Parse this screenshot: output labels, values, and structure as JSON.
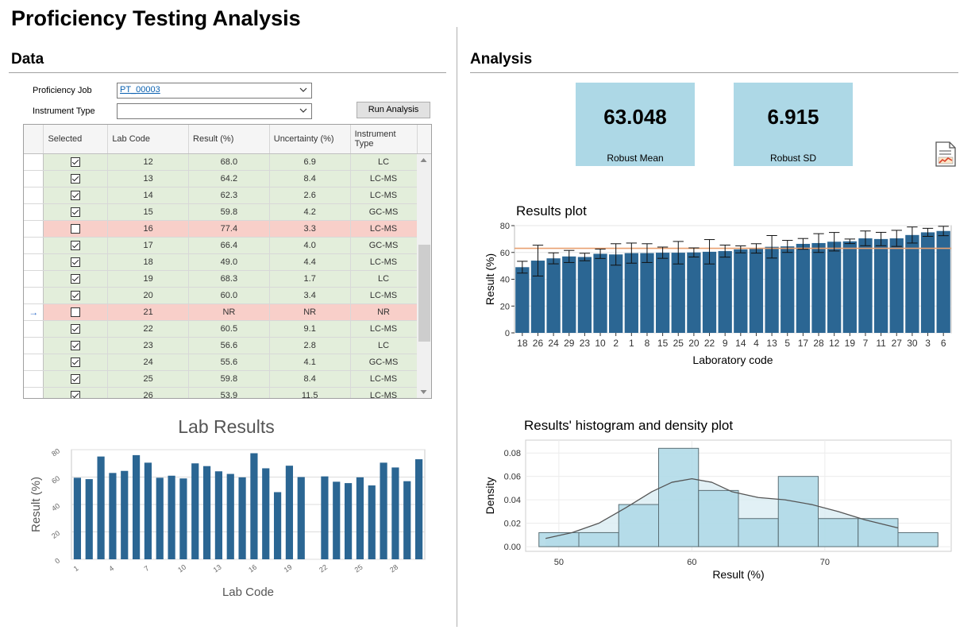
{
  "app": {
    "title": "Proficiency Testing Analysis"
  },
  "data_section": {
    "title": "Data",
    "proficiency_job_label": "Proficiency Job",
    "proficiency_job_value": "PT_00003",
    "instrument_type_label": "Instrument Type",
    "instrument_type_value": "",
    "run_button": "Run Analysis",
    "grid": {
      "columns": [
        "Selected",
        "Lab Code",
        "Result (%)",
        "Uncertainty (%)",
        "Instrument Type"
      ],
      "current_row_marker": "→",
      "rows": [
        {
          "selected": true,
          "lab": "12",
          "result": "68.0",
          "unc": "6.9",
          "inst": "LC",
          "ok": true
        },
        {
          "selected": true,
          "lab": "13",
          "result": "64.2",
          "unc": "8.4",
          "inst": "LC-MS",
          "ok": true
        },
        {
          "selected": true,
          "lab": "14",
          "result": "62.3",
          "unc": "2.6",
          "inst": "LC-MS",
          "ok": true
        },
        {
          "selected": true,
          "lab": "15",
          "result": "59.8",
          "unc": "4.2",
          "inst": "GC-MS",
          "ok": true
        },
        {
          "selected": false,
          "lab": "16",
          "result": "77.4",
          "unc": "3.3",
          "inst": "LC-MS",
          "ok": false
        },
        {
          "selected": true,
          "lab": "17",
          "result": "66.4",
          "unc": "4.0",
          "inst": "GC-MS",
          "ok": true
        },
        {
          "selected": true,
          "lab": "18",
          "result": "49.0",
          "unc": "4.4",
          "inst": "LC-MS",
          "ok": true
        },
        {
          "selected": true,
          "lab": "19",
          "result": "68.3",
          "unc": "1.7",
          "inst": "LC",
          "ok": true
        },
        {
          "selected": true,
          "lab": "20",
          "result": "60.0",
          "unc": "3.4",
          "inst": "LC-MS",
          "ok": true
        },
        {
          "selected": false,
          "lab": "21",
          "result": "NR",
          "unc": "NR",
          "inst": "NR",
          "ok": false,
          "current": true
        },
        {
          "selected": true,
          "lab": "22",
          "result": "60.5",
          "unc": "9.1",
          "inst": "LC-MS",
          "ok": true
        },
        {
          "selected": true,
          "lab": "23",
          "result": "56.6",
          "unc": "2.8",
          "inst": "LC",
          "ok": true
        },
        {
          "selected": true,
          "lab": "24",
          "result": "55.6",
          "unc": "4.1",
          "inst": "GC-MS",
          "ok": true
        },
        {
          "selected": true,
          "lab": "25",
          "result": "59.8",
          "unc": "8.4",
          "inst": "LC-MS",
          "ok": true
        },
        {
          "selected": true,
          "lab": "26",
          "result": "53.9",
          "unc": "11.5",
          "inst": "LC-MS",
          "ok": true
        }
      ]
    },
    "lab_results_chart": {
      "title": "Lab Results",
      "xlabel": "Lab Code",
      "ylabel": "Result (%)",
      "ylim": [
        0,
        80
      ],
      "yticks": [
        0,
        20,
        40,
        60,
        80
      ],
      "xticks": [
        1,
        4,
        7,
        10,
        13,
        16,
        19,
        22,
        25,
        28
      ],
      "bar_color": "#2b6693",
      "labs": [
        1,
        2,
        3,
        4,
        5,
        6,
        7,
        8,
        9,
        10,
        11,
        12,
        13,
        14,
        15,
        16,
        17,
        18,
        19,
        20,
        21,
        22,
        23,
        24,
        25,
        26,
        27,
        28,
        29,
        30
      ],
      "values": [
        59.5,
        58.5,
        75,
        63,
        64.5,
        76,
        70.5,
        59.5,
        61,
        59,
        70,
        68,
        64.2,
        62.3,
        59.8,
        77.4,
        66.4,
        49,
        68.3,
        60,
        null,
        60.5,
        56.6,
        55.6,
        59.8,
        53.9,
        70.5,
        67,
        57,
        73
      ]
    }
  },
  "analysis_section": {
    "title": "Analysis",
    "robust_mean": {
      "value": "63.048",
      "label": "Robust Mean"
    },
    "robust_sd": {
      "value": "6.915",
      "label": "Robust SD"
    },
    "report_icon": "report-icon"
  },
  "chart_data": [
    {
      "type": "bar",
      "title": "Results plot",
      "xlabel": "Laboratory code",
      "ylabel": "Result (%)",
      "ylim": [
        0,
        80
      ],
      "yticks": [
        0,
        20,
        40,
        60,
        80
      ],
      "bar_color": "#2b6693",
      "reference_line": 63.048,
      "reference_color": "#e8a070",
      "categories": [
        "18",
        "26",
        "24",
        "29",
        "23",
        "10",
        "2",
        "1",
        "8",
        "15",
        "25",
        "20",
        "22",
        "9",
        "14",
        "4",
        "13",
        "5",
        "17",
        "28",
        "12",
        "19",
        "7",
        "11",
        "27",
        "30",
        "3",
        "6"
      ],
      "values": [
        49,
        53.9,
        55.6,
        57,
        56.6,
        59,
        58.5,
        59.5,
        59.5,
        59.8,
        59.8,
        60,
        60.5,
        61,
        62.3,
        63,
        64.2,
        64.5,
        66.4,
        67,
        68,
        68.3,
        70.5,
        70,
        70.5,
        73,
        75,
        76
      ],
      "uncertainty": [
        4.4,
        11.5,
        4.1,
        4.5,
        2.8,
        3.5,
        8,
        7.5,
        7,
        4.2,
        8.4,
        3.4,
        9.1,
        4.5,
        2.6,
        3.5,
        8.4,
        4.5,
        4,
        7,
        6.9,
        1.7,
        5.5,
        5,
        6,
        6,
        3,
        3.5
      ],
      "grid": true
    },
    {
      "type": "histogram",
      "title": "Results' histogram and density plot",
      "xlabel": "Result (%)",
      "ylabel": "Density",
      "xlim": [
        47.5,
        79.5
      ],
      "ylim": [
        -0.004,
        0.091
      ],
      "xticks": [
        50,
        60,
        70
      ],
      "yticks": [
        0,
        0.02,
        0.04,
        0.06,
        0.08
      ],
      "ytick_labels": [
        "0.00",
        "0.02",
        "0.04",
        "0.06",
        "0.08"
      ],
      "bin_color": "#add8e6",
      "bins": [
        {
          "x0": 48.5,
          "x1": 51.5,
          "density": 0.012
        },
        {
          "x0": 51.5,
          "x1": 54.5,
          "density": 0.012
        },
        {
          "x0": 54.5,
          "x1": 57.5,
          "density": 0.036
        },
        {
          "x0": 57.5,
          "x1": 60.5,
          "density": 0.084
        },
        {
          "x0": 60.5,
          "x1": 63.5,
          "density": 0.048
        },
        {
          "x0": 63.5,
          "x1": 66.5,
          "density": 0.024
        },
        {
          "x0": 66.5,
          "x1": 69.5,
          "density": 0.06
        },
        {
          "x0": 69.5,
          "x1": 72.5,
          "density": 0.024
        },
        {
          "x0": 72.5,
          "x1": 75.5,
          "density": 0.024
        },
        {
          "x0": 75.5,
          "x1": 78.5,
          "density": 0.012
        }
      ],
      "density_x": [
        49,
        51,
        53,
        55,
        57,
        58.5,
        60,
        61.5,
        63,
        65,
        67,
        69,
        71,
        73,
        75.5
      ],
      "density_y": [
        0.007,
        0.012,
        0.02,
        0.033,
        0.047,
        0.055,
        0.058,
        0.055,
        0.047,
        0.042,
        0.04,
        0.036,
        0.03,
        0.023,
        0.016
      ]
    }
  ]
}
